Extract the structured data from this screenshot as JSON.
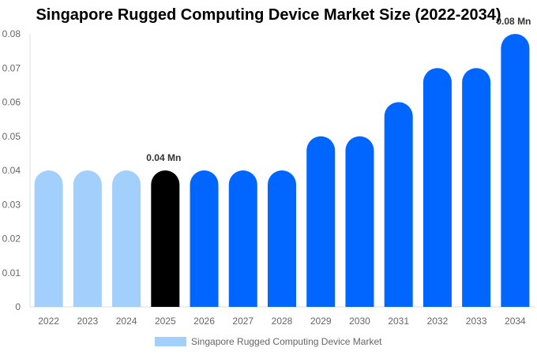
{
  "chart_data": {
    "type": "bar",
    "title": "Singapore Rugged Computing Device Market Size (2022-2034)",
    "categories": [
      "2022",
      "2023",
      "2024",
      "2025",
      "2026",
      "2027",
      "2028",
      "2029",
      "2030",
      "2031",
      "2032",
      "2033",
      "2034"
    ],
    "series": [
      {
        "name": "Singapore Rugged Computing Device Market",
        "values": [
          0.04,
          0.04,
          0.04,
          0.04,
          0.04,
          0.04,
          0.04,
          0.05,
          0.05,
          0.06,
          0.07,
          0.07,
          0.08
        ]
      }
    ],
    "ylim": [
      0,
      0.08
    ],
    "yticks": [
      "0",
      "0.01",
      "0.02",
      "0.03",
      "0.04",
      "0.05",
      "0.06",
      "0.07",
      "0.08"
    ],
    "data_labels": [
      {
        "category": "2025",
        "text": "0.04 Mn"
      },
      {
        "category": "2034",
        "text": "0.08 Mn"
      }
    ],
    "bar_colors": [
      "#a3cffd",
      "#a3cffd",
      "#a3cffd",
      "#000000",
      "#0066ff",
      "#0066ff",
      "#0066ff",
      "#0066ff",
      "#0066ff",
      "#0066ff",
      "#0066ff",
      "#0066ff",
      "#0066ff"
    ],
    "grid": false,
    "legend_position": "bottom",
    "legend_color": "#a3cffd"
  }
}
